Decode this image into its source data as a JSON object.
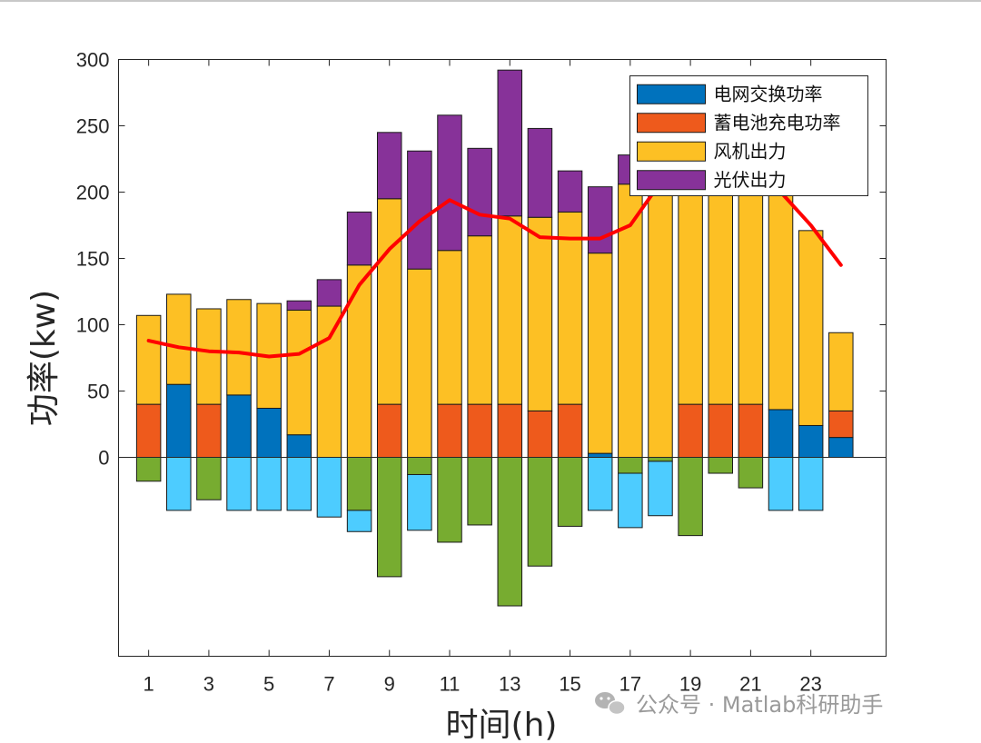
{
  "chart_data": {
    "type": "bar",
    "stacked": true,
    "xlabel": "时间(h)",
    "ylabel": "功率(kw)",
    "x": [
      1,
      2,
      3,
      4,
      5,
      6,
      7,
      8,
      9,
      10,
      11,
      12,
      13,
      14,
      15,
      16,
      17,
      18,
      19,
      20,
      21,
      22,
      23,
      24
    ],
    "x_tick_labels": [
      "1",
      "3",
      "5",
      "7",
      "9",
      "11",
      "13",
      "15",
      "17",
      "19",
      "21",
      "23"
    ],
    "y_tick_labels": [
      "300",
      "250",
      "200",
      "150",
      "100",
      "50",
      "0"
    ],
    "xlim": [
      0,
      25.5
    ],
    "ylim": [
      -150,
      300
    ],
    "grid": false,
    "legend_position": "top-right",
    "positive_series": [
      {
        "name": "电网交换功率",
        "color": "#0072BD",
        "values": [
          0,
          55,
          0,
          47,
          37,
          17,
          0,
          0,
          0,
          0,
          0,
          0,
          0,
          0,
          0,
          3,
          0,
          0,
          0,
          0,
          0,
          36,
          24,
          15
        ]
      },
      {
        "name": "蓄电池充电功率",
        "color": "#EE5A1C",
        "values": [
          40,
          0,
          40,
          0,
          0,
          0,
          0,
          0,
          40,
          0,
          40,
          40,
          40,
          35,
          40,
          0,
          0,
          0,
          40,
          40,
          40,
          0,
          0,
          20
        ]
      },
      {
        "name": "风机出力",
        "color": "#FDC024",
        "values": [
          67,
          68,
          72,
          72,
          79,
          94,
          114,
          145,
          155,
          142,
          116,
          127,
          142,
          146,
          145,
          151,
          206,
          227,
          188,
          197,
          175,
          169,
          147,
          59
        ]
      },
      {
        "name": "光伏出力",
        "color": "#873299",
        "values": [
          0,
          0,
          0,
          0,
          0,
          7,
          20,
          40,
          50,
          89,
          102,
          66,
          110,
          67,
          31,
          50,
          22,
          0,
          0,
          0,
          0,
          0,
          0,
          0
        ]
      }
    ],
    "negative_series": [
      {
        "name": "",
        "color": "#77AC30",
        "values": [
          -18,
          0,
          -32,
          0,
          0,
          0,
          0,
          -40,
          -90,
          -13,
          -64,
          -51,
          -112,
          -82,
          -52,
          0,
          -12,
          -3,
          -59,
          -12,
          -23,
          0,
          0,
          0
        ]
      },
      {
        "name": "",
        "color": "#4DCCFF",
        "values": [
          0,
          -40,
          0,
          -40,
          -40,
          -40,
          -45,
          -16,
          0,
          -42,
          0,
          0,
          0,
          0,
          0,
          -40,
          -41,
          -41,
          0,
          0,
          0,
          -40,
          -40,
          0
        ]
      }
    ],
    "line_series": {
      "name": "",
      "color": "#FF0000",
      "values": [
        88,
        83,
        80,
        79,
        76,
        78,
        90,
        130,
        157,
        178,
        194,
        183,
        180,
        166,
        165,
        165,
        175,
        207,
        225,
        220,
        210,
        200,
        175,
        145
      ]
    }
  },
  "watermark": "公众号 · Matlab科研助手"
}
